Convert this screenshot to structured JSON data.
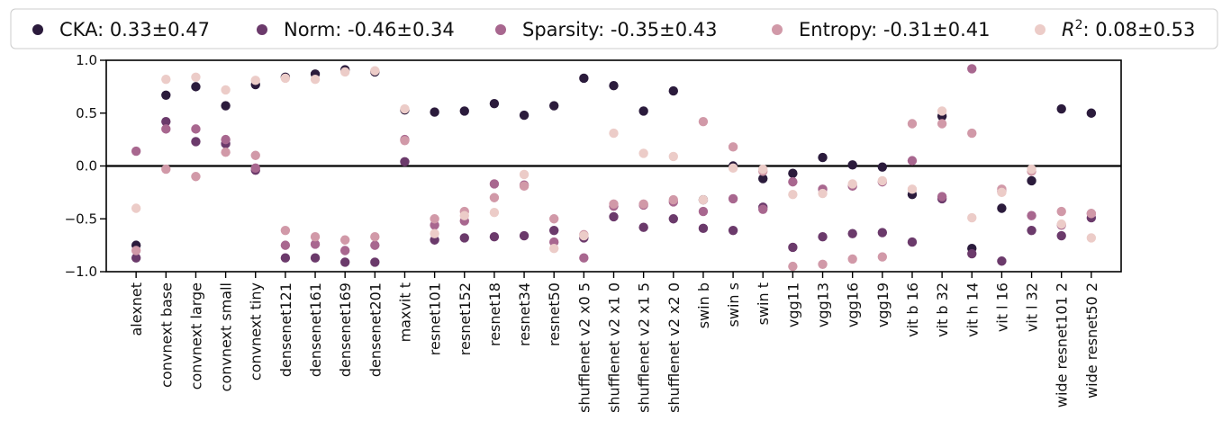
{
  "chart_data": {
    "type": "scatter",
    "title": "",
    "xlabel": "",
    "ylabel": "",
    "ylim": [
      -1.0,
      1.0
    ],
    "yticks": [
      "1.0",
      "0.5",
      "0.0",
      "−0.5",
      "−1.0"
    ],
    "ytick_values": [
      1.0,
      0.5,
      0.0,
      -0.5,
      -1.0
    ],
    "zero_line": true,
    "grid": false,
    "legend_position": "top",
    "categories": [
      "alexnet",
      "convnext base",
      "convnext large",
      "convnext small",
      "convnext tiny",
      "densenet121",
      "densenet161",
      "densenet169",
      "densenet201",
      "maxvit t",
      "resnet101",
      "resnet152",
      "resnet18",
      "resnet34",
      "resnet50",
      "shufflenet v2 x0 5",
      "shufflenet v2 x1 0",
      "shufflenet v2 x1 5",
      "shufflenet v2 x2 0",
      "swin b",
      "swin s",
      "swin t",
      "vgg11",
      "vgg13",
      "vgg16",
      "vgg19",
      "vit b 16",
      "vit b 32",
      "vit h 14",
      "vit l 16",
      "vit l 32",
      "wide resnet101 2",
      "wide resnet50 2"
    ],
    "series": [
      {
        "name": "CKA",
        "stat": ": 0.33±0.47",
        "color": "#2b1b3c",
        "values": [
          -0.75,
          0.67,
          0.75,
          0.57,
          0.77,
          0.84,
          0.87,
          0.91,
          0.89,
          0.53,
          0.51,
          0.52,
          0.59,
          0.48,
          0.57,
          0.83,
          0.76,
          0.52,
          0.71,
          -0.32,
          0.0,
          -0.12,
          -0.07,
          0.08,
          0.01,
          -0.01,
          -0.27,
          0.47,
          -0.78,
          -0.4,
          -0.14,
          0.54,
          0.5
        ]
      },
      {
        "name": "Norm",
        "stat": ": -0.46±0.34",
        "color": "#6b3a6b",
        "values": [
          -0.87,
          0.42,
          0.23,
          0.21,
          -0.04,
          -0.87,
          -0.87,
          -0.91,
          -0.91,
          0.04,
          -0.7,
          -0.68,
          -0.67,
          -0.66,
          -0.61,
          -0.68,
          -0.48,
          -0.58,
          -0.5,
          -0.59,
          -0.61,
          -0.39,
          -0.77,
          -0.67,
          -0.64,
          -0.63,
          -0.72,
          -0.31,
          -0.83,
          -0.9,
          -0.61,
          -0.66,
          -0.49
        ]
      },
      {
        "name": "Sparsity",
        "stat": ": -0.35±0.43",
        "color": "#a8678f",
        "values": [
          0.14,
          0.35,
          0.35,
          0.25,
          -0.02,
          -0.75,
          -0.74,
          -0.8,
          -0.75,
          0.25,
          -0.56,
          -0.52,
          -0.17,
          -0.18,
          -0.72,
          -0.87,
          -0.38,
          -0.37,
          -0.34,
          -0.43,
          -0.31,
          -0.41,
          -0.15,
          -0.22,
          -0.19,
          -0.15,
          0.05,
          -0.29,
          0.92,
          -0.24,
          -0.47,
          -0.56,
          -0.45
        ]
      },
      {
        "name": "Entropy",
        "stat": ": -0.31±0.41",
        "color": "#d199a8",
        "values": [
          -0.8,
          -0.03,
          -0.1,
          0.13,
          0.1,
          -0.61,
          -0.67,
          -0.7,
          -0.67,
          0.24,
          -0.5,
          -0.43,
          -0.3,
          -0.19,
          -0.5,
          -0.65,
          -0.36,
          -0.36,
          -0.32,
          0.42,
          0.18,
          -0.05,
          -0.95,
          -0.93,
          -0.88,
          -0.86,
          0.4,
          0.4,
          0.31,
          -0.22,
          -0.05,
          -0.43,
          -0.45
        ]
      },
      {
        "name": "R2",
        "label_html_base": "R",
        "label_sup": "2",
        "stat": ": 0.08±0.53",
        "color": "#ecccc8",
        "values": [
          -0.4,
          0.82,
          0.84,
          0.72,
          0.81,
          0.83,
          0.82,
          0.89,
          0.9,
          0.54,
          -0.64,
          -0.47,
          -0.44,
          -0.08,
          -0.78,
          -0.66,
          0.31,
          0.12,
          0.09,
          -0.32,
          -0.02,
          -0.03,
          -0.27,
          -0.26,
          -0.17,
          -0.14,
          -0.22,
          0.52,
          -0.49,
          -0.25,
          -0.03,
          -0.55,
          -0.68
        ]
      }
    ]
  }
}
